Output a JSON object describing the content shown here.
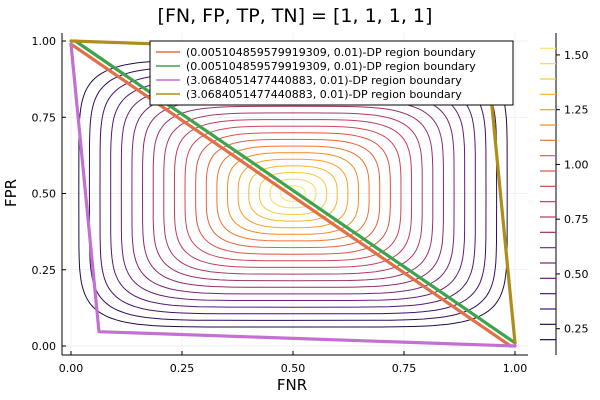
{
  "chart_data": {
    "type": "line",
    "title": "[FN, FP, TP, TN] = [1, 1, 1, 1]",
    "xlabel": "FNR",
    "ylabel": "FPR",
    "xlim": [
      0.0,
      1.0
    ],
    "ylim": [
      0.0,
      1.0
    ],
    "x_ticks": [
      0.0,
      0.25,
      0.5,
      0.75,
      1.0
    ],
    "x_tick_labels": [
      "0.00",
      "0.25",
      "0.50",
      "0.75",
      "1.00"
    ],
    "y_ticks": [
      0.0,
      0.25,
      0.5,
      0.75,
      1.0
    ],
    "y_tick_labels": [
      "0.00",
      "0.25",
      "0.50",
      "0.75",
      "1.00"
    ],
    "grid": true,
    "legend_position": "top-right",
    "series": [
      {
        "name": "(0.005104859579919309, 0.01)-DP region boundary",
        "color": "#e26f46",
        "x": [
          0.0,
          0.99
        ],
        "y": [
          0.99,
          0.0
        ]
      },
      {
        "name": "(0.005104859579919309, 0.01)-DP region boundary",
        "color": "#3da44d",
        "x": [
          0.01,
          1.0
        ],
        "y": [
          1.0,
          0.01
        ]
      },
      {
        "name": "(3.0684051477440883, 0.01)-DP region boundary",
        "color": "#c271d2",
        "x": [
          0.0,
          0.063,
          1.0
        ],
        "y": [
          0.99,
          0.047,
          0.0
        ]
      },
      {
        "name": "(3.0684051477440883, 0.01)-DP region boundary",
        "color": "#ac8e18",
        "x": [
          0.0,
          0.937,
          1.0
        ],
        "y": [
          1.0,
          0.953,
          0.01
        ]
      }
    ],
    "contour": {
      "colorbar_ticks": [
        0.25,
        0.5,
        0.75,
        1.0,
        1.25,
        1.5
      ],
      "colorbar_tick_labels": [
        "0.25",
        "0.50",
        "0.75",
        "1.00",
        "1.25",
        "1.50"
      ],
      "colorbar_range": [
        0.13,
        1.6
      ],
      "levels": [
        0.2,
        0.27,
        0.34,
        0.41,
        0.48,
        0.55,
        0.62,
        0.69,
        0.76,
        0.83,
        0.9,
        0.97,
        1.04,
        1.11,
        1.18,
        1.25,
        1.32,
        1.39,
        1.46,
        1.53
      ],
      "colormap": [
        "#0d0829",
        "#3b0f6f",
        "#6c1f7a",
        "#9c2e6f",
        "#cc3f57",
        "#ec6136",
        "#f89a1d",
        "#f5d03f",
        "#fcf19a"
      ]
    }
  }
}
